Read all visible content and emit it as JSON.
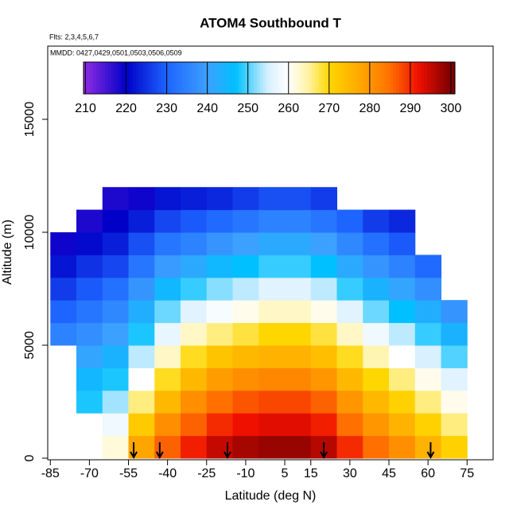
{
  "chart_data": {
    "type": "heatmap",
    "title": "ATOM4 Southbound T",
    "subtitle": "Flts: 2,3,4,5,6,7",
    "annotation": "MMDD: 0427,0429,0501,0503,0506,0509",
    "x_label": "Latitude (deg N)",
    "y_label": "Altitude (m)",
    "xlim": [
      -86,
      85
    ],
    "ylim": [
      0,
      18240
    ],
    "xticks": [
      -85,
      -70,
      -55,
      -40,
      -25,
      -10,
      5,
      15,
      30,
      45,
      60,
      75
    ],
    "yticks": [
      0,
      5000,
      10000,
      15000
    ],
    "x_edges": [
      -85,
      -75,
      -65,
      -55,
      -45,
      -35,
      -25,
      -15,
      -5,
      5,
      15,
      25,
      35,
      45,
      55,
      65,
      75
    ],
    "y_edges": [
      0,
      1000,
      2000,
      3000,
      4000,
      5000,
      6000,
      7000,
      8000,
      9000,
      10000,
      11000,
      12000
    ],
    "z": [
      [
        null,
        null,
        null,
        null,
        null,
        235,
        230,
        226,
        222,
        219,
        null,
        null
      ],
      [
        null,
        null,
        248,
        245,
        241,
        237,
        233,
        229,
        225,
        221,
        218,
        null
      ],
      [
        262,
        258,
        253,
        248,
        244,
        240,
        236,
        232,
        227,
        223,
        220,
        218
      ],
      [
        278,
        272,
        266,
        260,
        254,
        248,
        243,
        238,
        233,
        228,
        223,
        219
      ],
      [
        286,
        281,
        275,
        269,
        263,
        257,
        251,
        245,
        239,
        233,
        227,
        222
      ],
      [
        291,
        286,
        281,
        275,
        269,
        263,
        256,
        249,
        242,
        235,
        229,
        223
      ],
      [
        295,
        290,
        285,
        279,
        273,
        266,
        259,
        252,
        245,
        238,
        231,
        224
      ],
      [
        297,
        292,
        287,
        281,
        275,
        268,
        261,
        254,
        247,
        240,
        233,
        226
      ],
      [
        298,
        293,
        288,
        282,
        276,
        270,
        263,
        256,
        249,
        242,
        235,
        228
      ],
      [
        298,
        293,
        288,
        282,
        276,
        270,
        263,
        256,
        249,
        242,
        235,
        228
      ],
      [
        296,
        291,
        286,
        280,
        274,
        268,
        261,
        254,
        247,
        240,
        233,
        226
      ],
      [
        290,
        285,
        280,
        275,
        269,
        263,
        256,
        249,
        242,
        236,
        230,
        null
      ],
      [
        285,
        280,
        275,
        270,
        264,
        258,
        251,
        244,
        238,
        232,
        226,
        null
      ],
      [
        281,
        276,
        271,
        266,
        260,
        254,
        247,
        241,
        235,
        229,
        224,
        null
      ],
      [
        276,
        271,
        266,
        261,
        255,
        249,
        243,
        237,
        231,
        null,
        null,
        null
      ],
      [
        271,
        266,
        261,
        256,
        250,
        244,
        238,
        null,
        null,
        null,
        null,
        null
      ]
    ],
    "clim": [
      209.5,
      301
    ],
    "colorbar_ticks": [
      210,
      220,
      230,
      240,
      250,
      260,
      270,
      280,
      290,
      300
    ],
    "colormap": [
      [
        210,
        "#8a2be2"
      ],
      [
        220,
        "#0000c8"
      ],
      [
        230,
        "#1e64ff"
      ],
      [
        240,
        "#3ca0ff"
      ],
      [
        247,
        "#00c0ff"
      ],
      [
        255,
        "#d8f0ff"
      ],
      [
        260,
        "#ffffff"
      ],
      [
        265,
        "#fff2a0"
      ],
      [
        270,
        "#ffd700"
      ],
      [
        278,
        "#ffa500"
      ],
      [
        285,
        "#ff7000"
      ],
      [
        292,
        "#f01000"
      ],
      [
        300,
        "#7a0000"
      ]
    ],
    "arrows_x": [
      -53,
      -43,
      -17,
      20,
      61
    ]
  }
}
